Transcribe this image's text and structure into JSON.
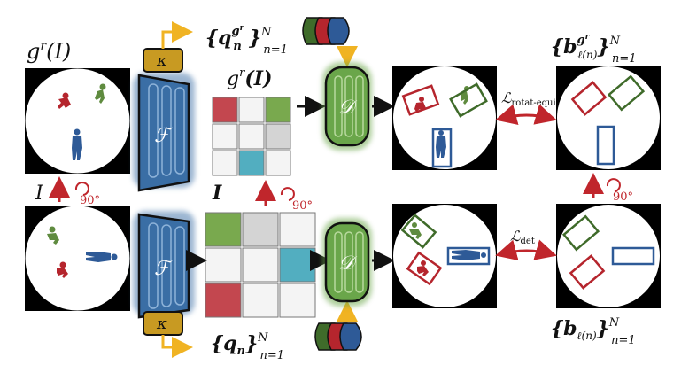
{
  "labels": {
    "g_of_I": "g",
    "g_sup": "r",
    "g_paren": "(I)",
    "I_label": "I",
    "I_bold": "I",
    "rot_angle_top": "90°",
    "rot_angle_mid": "90°",
    "rot_angle_right": "90°",
    "kappa": "κ",
    "encoder": "ℱ",
    "decoder": "𝒟",
    "grid_title_top_g": "g",
    "grid_title_top_sup": "r",
    "grid_title_top_rest": "(I)",
    "query_top": "{q",
    "query_top_sub": "n",
    "query_top_sup": "g",
    "query_top_supsup": "r",
    "query_top_close": "}",
    "query_top_N": "N",
    "query_top_range": "n=1",
    "query_bottom": "{q",
    "query_bottom_sub": "n",
    "query_bottom_close": "}",
    "query_bottom_N": "N",
    "query_bottom_range": "n=1",
    "box_top": "{b",
    "box_top_sup": "g",
    "box_top_supsup": "r",
    "box_top_sub": "ℓ(n)",
    "box_top_close": "}",
    "box_top_N": "N",
    "box_top_range": "n=1",
    "box_bottom": "{b",
    "box_bottom_sub": "ℓ(n)",
    "box_bottom_close": "}",
    "box_bottom_N": "N",
    "box_bottom_range": "n=1",
    "loss_rot": "ℒ",
    "loss_rot_sub": "rotat-equi",
    "loss_det": "ℒ",
    "loss_det_sub": "det"
  },
  "colors": {
    "red": "#b5252d",
    "green": "#3f6b2a",
    "blue": "#2e5a97",
    "encoder_blue": "#3a6ea5",
    "decoder_green": "#6aa64a",
    "kappa_gold": "#c89a22",
    "arrow_red": "#c0262c",
    "arrow_gold": "#f0b323",
    "cell_red": "#c3474f",
    "cell_green": "#79a94e",
    "cell_teal": "#52aec0",
    "cell_gray": "#d4d4d4"
  }
}
